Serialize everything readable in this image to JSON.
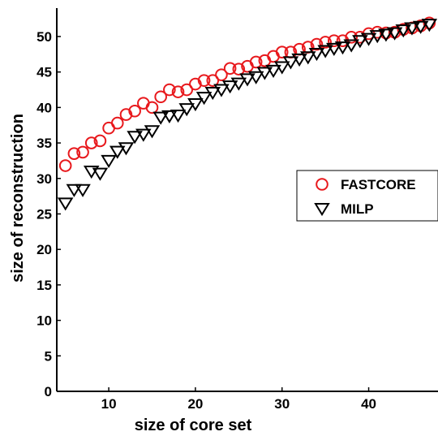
{
  "chart_data": {
    "type": "scatter",
    "xlabel": "size of core set",
    "ylabel": "size of reconstruction",
    "xlim": [
      4,
      48
    ],
    "ylim": [
      0,
      54
    ],
    "xticks": [
      10,
      20,
      30,
      40
    ],
    "yticks": [
      0,
      5,
      10,
      15,
      20,
      25,
      30,
      35,
      40,
      45,
      50
    ],
    "grid": false,
    "legend_position": "right",
    "series": [
      {
        "name": "FASTCORE",
        "marker": "circle",
        "color": "#e8181c",
        "x": [
          5,
          6,
          7,
          8,
          9,
          10,
          11,
          12,
          13,
          14,
          15,
          16,
          17,
          18,
          19,
          20,
          21,
          22,
          23,
          24,
          25,
          26,
          27,
          28,
          29,
          30,
          31,
          32,
          33,
          34,
          35,
          36,
          37,
          38,
          39,
          40,
          41,
          42,
          43,
          44,
          45,
          46,
          47
        ],
        "y": [
          31.8,
          33.5,
          33.7,
          35.0,
          35.3,
          37.1,
          37.8,
          39.0,
          39.5,
          40.6,
          40.0,
          41.5,
          42.5,
          42.2,
          42.5,
          43.3,
          43.8,
          43.8,
          44.6,
          45.5,
          45.4,
          45.8,
          46.4,
          46.6,
          47.2,
          47.8,
          47.8,
          48.2,
          48.5,
          48.9,
          49.2,
          49.4,
          49.4,
          49.9,
          49.9,
          50.4,
          50.6,
          50.5,
          50.6,
          51.0,
          51.2,
          51.5,
          51.9
        ]
      },
      {
        "name": "MILP",
        "marker": "triangle-down",
        "color": "#000000",
        "x": [
          5,
          6,
          7,
          8,
          9,
          10,
          11,
          12,
          13,
          14,
          15,
          16,
          17,
          18,
          19,
          20,
          21,
          22,
          23,
          24,
          25,
          26,
          27,
          28,
          29,
          30,
          31,
          32,
          33,
          34,
          35,
          36,
          37,
          38,
          39,
          40,
          41,
          42,
          43,
          44,
          45,
          46,
          47
        ],
        "y": [
          26.5,
          28.4,
          28.4,
          31.0,
          30.7,
          32.5,
          33.8,
          34.3,
          35.9,
          36.2,
          36.7,
          38.6,
          38.8,
          38.9,
          39.8,
          40.5,
          41.4,
          42.1,
          42.5,
          43.0,
          43.4,
          44.0,
          44.3,
          44.9,
          45.2,
          45.7,
          46.4,
          46.8,
          47.1,
          47.6,
          48.0,
          48.3,
          48.5,
          48.8,
          49.4,
          49.7,
          50.1,
          50.3,
          50.5,
          50.9,
          51.2,
          51.4,
          51.7
        ]
      }
    ]
  }
}
